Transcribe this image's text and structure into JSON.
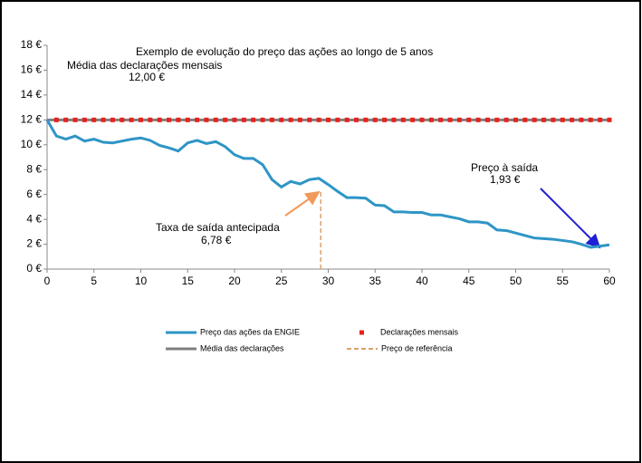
{
  "chart_data": {
    "type": "line",
    "title": "Exemplo de evolução do preço das ações ao longo de 5 anos",
    "annotations": [
      {
        "text": "Média das declarações mensais",
        "value_text": "12,00 €"
      },
      {
        "text": "Taxa de saída antecipada",
        "value_text": "6,78 €"
      },
      {
        "text": "Preço à saída",
        "value_text": "1,93 €"
      }
    ],
    "xlim": [
      0,
      60
    ],
    "xticks": [
      0,
      5,
      10,
      15,
      20,
      25,
      30,
      35,
      40,
      45,
      50,
      55,
      60
    ],
    "ylim": [
      0,
      18
    ],
    "yticks": [
      {
        "value": 0,
        "label": "0 €"
      },
      {
        "value": 2,
        "label": "2 €"
      },
      {
        "value": 4,
        "label": "4 €"
      },
      {
        "value": 6,
        "label": "6 €"
      },
      {
        "value": 8,
        "label": "8 €"
      },
      {
        "value": 10,
        "label": "10 €"
      },
      {
        "value": 12,
        "label": "12 €"
      },
      {
        "value": 14,
        "label": "14 €"
      },
      {
        "value": 16,
        "label": "16 €"
      },
      {
        "value": 18,
        "label": "18 €"
      }
    ],
    "series": [
      {
        "name": "Preço das ações da ENGIE",
        "color": "#2e95c6",
        "style": "line",
        "x": [
          0,
          1,
          2,
          3,
          4,
          5,
          6,
          7,
          8,
          9,
          10,
          11,
          12,
          13,
          14,
          15,
          16,
          17,
          18,
          19,
          20,
          21,
          22,
          23,
          24,
          25,
          26,
          27,
          28,
          29,
          30,
          31,
          32,
          33,
          34,
          35,
          36,
          37,
          38,
          39,
          40,
          41,
          42,
          43,
          44,
          45,
          46,
          47,
          48,
          49,
          50,
          51,
          52,
          53,
          54,
          55,
          56,
          57,
          58,
          59,
          60
        ],
        "values": [
          12,
          10.7,
          10.45,
          10.7,
          10.3,
          10.45,
          10.2,
          10.15,
          10.3,
          10.45,
          10.55,
          10.35,
          9.95,
          9.75,
          9.5,
          10.15,
          10.35,
          10.1,
          10.25,
          9.85,
          9.2,
          8.9,
          8.9,
          8.4,
          7.2,
          6.6,
          7.05,
          6.85,
          7.2,
          7.3,
          6.8,
          6.25,
          5.75,
          5.75,
          5.7,
          5.15,
          5.1,
          4.6,
          4.6,
          4.55,
          4.55,
          4.35,
          4.35,
          4.2,
          4.05,
          3.8,
          3.8,
          3.7,
          3.15,
          3.1,
          2.9,
          2.7,
          2.5,
          2.45,
          2.4,
          2.3,
          2.2,
          2.0,
          1.75,
          1.85,
          1.95
        ]
      },
      {
        "name": "Declarações mensais",
        "color": "#e8221c",
        "style": "marker",
        "x": [
          1,
          2,
          3,
          4,
          5,
          6,
          7,
          8,
          9,
          10,
          11,
          12,
          13,
          14,
          15,
          16,
          17,
          18,
          19,
          20,
          21,
          22,
          23,
          24,
          25,
          26,
          27,
          28,
          29,
          30,
          31,
          32,
          33,
          34,
          35,
          36,
          37,
          38,
          39,
          40,
          41,
          42,
          43,
          44,
          45,
          46,
          47,
          48,
          49,
          50,
          51,
          52,
          53,
          54,
          55,
          56,
          57,
          58,
          59,
          60
        ],
        "values": [
          12,
          12,
          12,
          12,
          12,
          12,
          12,
          12,
          12,
          12,
          12,
          12,
          12,
          12,
          12,
          12,
          12,
          12,
          12,
          12,
          12,
          12,
          12,
          12,
          12,
          12,
          12,
          12,
          12,
          12,
          12,
          12,
          12,
          12,
          12,
          12,
          12,
          12,
          12,
          12,
          12,
          12,
          12,
          12,
          12,
          12,
          12,
          12,
          12,
          12,
          12,
          12,
          12,
          12,
          12,
          12,
          12,
          12,
          12,
          12
        ]
      },
      {
        "name": "Média das declarações",
        "color": "#7f7f7f",
        "style": "line",
        "x": [
          0,
          60
        ],
        "values": [
          12,
          12
        ]
      },
      {
        "name": "Preço de referência",
        "color": "#d9a36b",
        "style": "dashed",
        "x": [
          29.2,
          29.2
        ],
        "values": [
          0,
          6.2
        ]
      }
    ]
  }
}
